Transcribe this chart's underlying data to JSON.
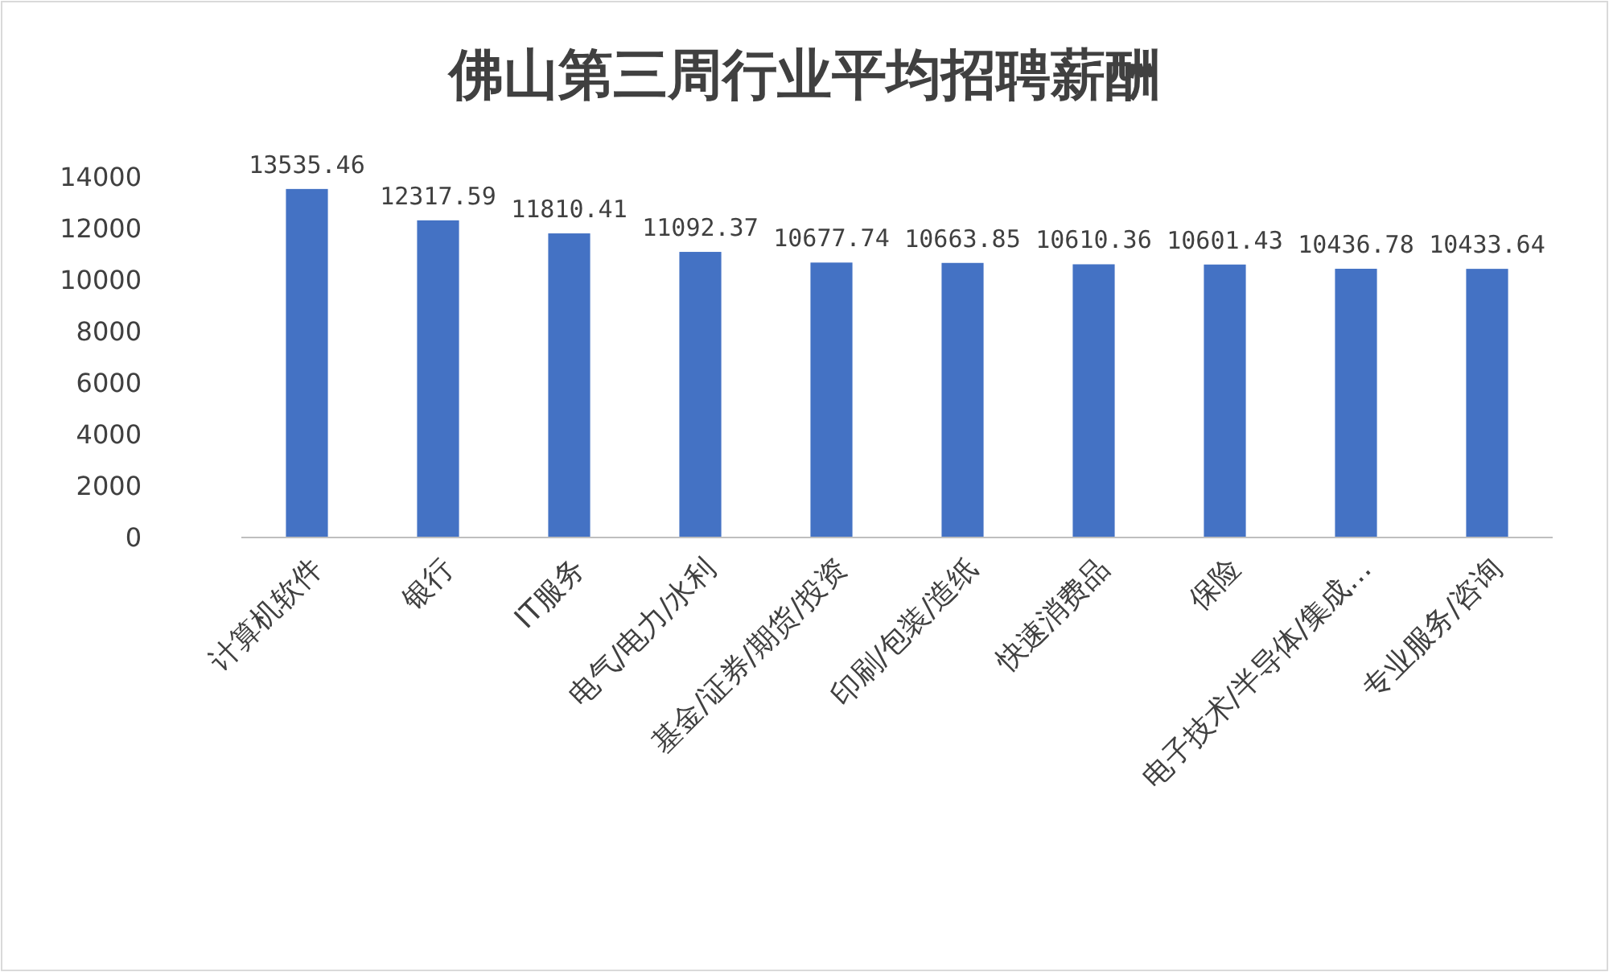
{
  "chart_data": {
    "type": "bar",
    "title": "佛山第三周行业平均招聘薪酬",
    "categories": [
      "计算机软件",
      "银行",
      "IT服务",
      "电气/电力/水利",
      "基金/证券/期货/投资",
      "印刷/包装/造纸",
      "快速消费品",
      "保险",
      "电子技术/半导体/集成…",
      "专业服务/咨询"
    ],
    "values": [
      13535.46,
      12317.59,
      11810.41,
      11092.37,
      10677.74,
      10663.85,
      10610.36,
      10601.43,
      10436.78,
      10433.64
    ],
    "color": "#4472c4",
    "ylim": [
      0,
      14000
    ],
    "yticks": [
      0,
      2000,
      4000,
      6000,
      8000,
      10000,
      12000,
      14000
    ],
    "grid": false,
    "data_labels": true
  }
}
